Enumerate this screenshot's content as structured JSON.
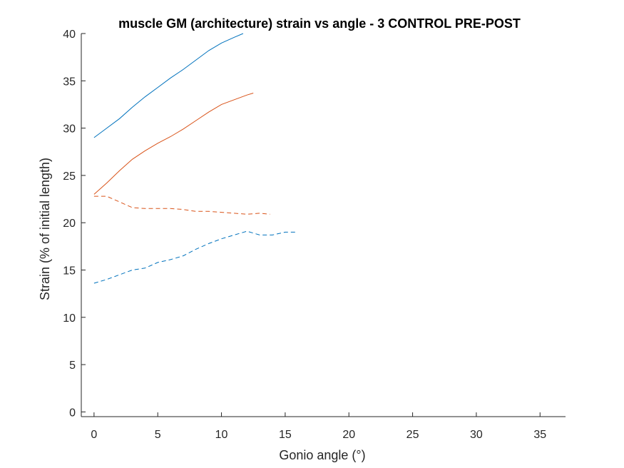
{
  "chart_data": {
    "type": "line",
    "title": "muscle GM (architecture) strain vs angle - 3 CONTROL PRE-POST",
    "xlabel": "Gonio angle (°)",
    "ylabel": "Strain (% of initial length)",
    "xlim": [
      -1,
      37
    ],
    "ylim": [
      -0.5,
      40
    ],
    "xticks": [
      0,
      5,
      10,
      15,
      20,
      25,
      30,
      35
    ],
    "yticks": [
      0,
      5,
      10,
      15,
      20,
      25,
      30,
      35,
      40
    ],
    "grid": false,
    "legend": "none",
    "series": [
      {
        "color": "#0072BD",
        "style": "solid",
        "x": [
          0,
          1,
          2,
          3,
          4,
          5,
          6,
          7,
          8,
          9,
          10,
          11,
          11.7
        ],
        "y": [
          29.0,
          30.0,
          31.0,
          32.2,
          33.3,
          34.3,
          35.3,
          36.2,
          37.2,
          38.2,
          39.0,
          39.6,
          40.0
        ]
      },
      {
        "color": "#D95319",
        "style": "solid",
        "x": [
          0,
          1,
          2,
          3,
          4,
          5,
          6,
          7,
          8,
          9,
          10,
          11,
          12,
          12.5
        ],
        "y": [
          23.0,
          24.2,
          25.5,
          26.7,
          27.6,
          28.4,
          29.1,
          29.9,
          30.8,
          31.7,
          32.5,
          33.0,
          33.5,
          33.7
        ]
      },
      {
        "color": "#D95319",
        "style": "dashed",
        "x": [
          0,
          1,
          2,
          3,
          4,
          5,
          6,
          7,
          8,
          9,
          10,
          11,
          12,
          13,
          13.8
        ],
        "y": [
          22.8,
          22.8,
          22.2,
          21.6,
          21.5,
          21.5,
          21.5,
          21.4,
          21.2,
          21.2,
          21.1,
          21.0,
          20.9,
          21.0,
          20.9
        ]
      },
      {
        "color": "#0072BD",
        "style": "dashed",
        "x": [
          0,
          1,
          2,
          3,
          4,
          5,
          6,
          7,
          8,
          9,
          10,
          11,
          12,
          13,
          14,
          15,
          15.8
        ],
        "y": [
          13.6,
          14.0,
          14.5,
          15.0,
          15.2,
          15.8,
          16.1,
          16.5,
          17.2,
          17.8,
          18.3,
          18.7,
          19.1,
          18.7,
          18.7,
          19.0,
          19.0
        ]
      }
    ]
  }
}
